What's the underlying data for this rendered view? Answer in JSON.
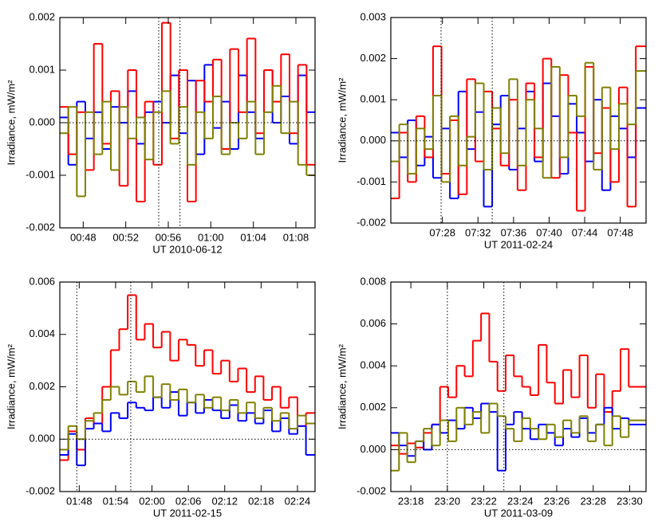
{
  "chart_data": [
    {
      "type": "line",
      "step": true,
      "x_label": "UT 2010-06-12",
      "y_label": "Irradiance, mW/m²",
      "xlim": [
        45.8,
        69.8
      ],
      "ylim": [
        -0.002,
        0.002
      ],
      "xticks": [
        {
          "value": 48,
          "label": "00:48"
        },
        {
          "value": 52,
          "label": "00:52"
        },
        {
          "value": 56,
          "label": "00:56"
        },
        {
          "value": 60,
          "label": "01:00"
        },
        {
          "value": 64,
          "label": "01:04"
        },
        {
          "value": 68,
          "label": "01:08"
        }
      ],
      "yticks": [
        -0.002,
        -0.001,
        {
          "value": 0,
          "label": "0.000"
        },
        0.001,
        0.002
      ],
      "vlines": [
        55.1,
        57.1
      ],
      "hlines": [
        0
      ],
      "x": [
        45.8,
        46.6,
        47.4,
        48.2,
        49.0,
        49.8,
        50.6,
        51.4,
        52.2,
        53.0,
        53.8,
        54.6,
        55.4,
        56.2,
        57.0,
        57.8,
        58.6,
        59.4,
        60.2,
        61.0,
        61.8,
        62.6,
        63.4,
        64.2,
        65.0,
        65.8,
        66.6,
        67.4,
        68.2,
        69.0
      ],
      "series": [
        {
          "color": "#0000ff",
          "values": [
            0.0001,
            -0.0008,
            0.0004,
            -0.0003,
            0.0002,
            -0.0005,
            0.0003,
            0.0,
            0.0006,
            -0.0004,
            0.0002,
            0.0004,
            0.0,
            0.0009,
            -0.0002,
            0.0008,
            -0.0006,
            0.0011,
            -0.0001,
            0.0004,
            -0.0005,
            0.0009,
            0.0002,
            -0.0003,
            0.001,
            0.0,
            0.0005,
            -0.0004,
            0.0009,
            0.0002
          ]
        },
        {
          "color": "#ff0000",
          "values": [
            0.0003,
            -0.0006,
            0.0002,
            -0.0009,
            0.0015,
            -0.0004,
            0.0006,
            -0.0012,
            0.001,
            -0.0015,
            0.0004,
            -0.0008,
            0.0019,
            -0.0003,
            0.001,
            -0.0015,
            0.0008,
            0.0004,
            0.0012,
            -0.0005,
            0.0014,
            0.0002,
            0.0016,
            -0.0002,
            0.001,
            0.0004,
            0.0013,
            -0.0002,
            0.0011,
            -0.0008
          ]
        },
        {
          "color": "#808000",
          "values": [
            -0.0002,
            0.0003,
            -0.0014,
            0.0002,
            -0.0006,
            0.0004,
            -0.0009,
            0.0003,
            -0.0003,
            0.0001,
            -0.0007,
            0.0002,
            0.0006,
            -0.0004,
            0.0003,
            -0.0008,
            0.0002,
            -0.0003,
            0.0005,
            -0.0006,
            0.0,
            -0.0003,
            0.0004,
            -0.0006,
            0.0002,
            0.0007,
            -0.0002,
            0.0004,
            -0.0008,
            -0.001
          ]
        }
      ]
    },
    {
      "type": "line",
      "step": true,
      "x_label": "UT 2011-02-24",
      "y_label": "Irradiance, mW/m²",
      "xlim": [
        442.2,
        470.9
      ],
      "ylim": [
        -0.002,
        0.003
      ],
      "xticks": [
        {
          "value": 448,
          "label": "07:28"
        },
        {
          "value": 452,
          "label": "07:32"
        },
        {
          "value": 456,
          "label": "07:36"
        },
        {
          "value": 460,
          "label": "07:40"
        },
        {
          "value": 464,
          "label": "07:44"
        },
        {
          "value": 468,
          "label": "07:48"
        }
      ],
      "yticks": [
        -0.002,
        -0.001,
        {
          "value": 0,
          "label": "0.000"
        },
        0.001,
        0.002,
        0.003
      ],
      "vlines": [
        447.85,
        453.6
      ],
      "hlines": [
        0
      ],
      "x": [
        442.2,
        443.15,
        444.1,
        445.05,
        446.0,
        446.95,
        447.9,
        448.85,
        449.8,
        450.75,
        451.7,
        452.65,
        453.6,
        454.55,
        455.5,
        456.45,
        457.4,
        458.35,
        459.3,
        460.25,
        461.2,
        462.15,
        463.1,
        464.05,
        465.0,
        465.95,
        466.9,
        467.85,
        468.8,
        469.75
      ],
      "series": [
        {
          "color": "#0000ff",
          "values": [
            0.0002,
            -0.0004,
            0.0005,
            -0.0006,
            0.0001,
            -0.0009,
            0.0003,
            -0.0014,
            0.0012,
            -0.0002,
            0.0007,
            -0.0016,
            0.0004,
            0.0011,
            -0.0007,
            0.0003,
            0.0012,
            -0.0005,
            0.0014,
            0.0006,
            -0.0008,
            0.0009,
            0.0002,
            -0.0005,
            0.001,
            -0.0012,
            0.0006,
            0.0003,
            -0.0004,
            0.0008
          ]
        },
        {
          "color": "#ff0000",
          "values": [
            -0.0014,
            0.0002,
            -0.001,
            0.0006,
            -0.0004,
            0.0023,
            -0.0008,
            0.0005,
            -0.0013,
            0.0015,
            -0.0005,
            0.0012,
            0.0003,
            -0.0006,
            0.001,
            -0.0012,
            0.0014,
            -0.0004,
            0.002,
            -0.0009,
            0.0016,
            0.0002,
            -0.0017,
            0.0018,
            -0.0003,
            0.0008,
            -0.001,
            0.0013,
            -0.0016,
            0.0023
          ]
        },
        {
          "color": "#808000",
          "values": [
            -0.0005,
            0.0004,
            -0.0008,
            0.0003,
            -0.0002,
            0.0011,
            -0.001,
            0.0006,
            -0.0006,
            0.0001,
            0.0014,
            -0.0007,
            0.0008,
            -0.0003,
            0.0015,
            -0.0006,
            0.001,
            0.0003,
            -0.0009,
            0.0018,
            -0.0004,
            0.0011,
            0.0006,
            0.0019,
            -0.0007,
            0.0013,
            -0.0002,
            0.0009,
            0.0004,
            0.0017
          ]
        }
      ]
    },
    {
      "type": "line",
      "step": true,
      "x_label": "UT 2011-02-15",
      "y_label": "Irradiance, mW/m²",
      "xlim": [
        104.8,
        146.9
      ],
      "ylim": [
        -0.002,
        0.006
      ],
      "xticks": [
        {
          "value": 108,
          "label": "01:48"
        },
        {
          "value": 114,
          "label": "01:54"
        },
        {
          "value": 120,
          "label": "02:00"
        },
        {
          "value": 126,
          "label": "02:06"
        },
        {
          "value": 132,
          "label": "02:12"
        },
        {
          "value": 138,
          "label": "02:18"
        },
        {
          "value": 144,
          "label": "02:24"
        }
      ],
      "yticks": [
        -0.002,
        {
          "value": 0,
          "label": "0.000"
        },
        0.002,
        0.004,
        0.006
      ],
      "vlines": [
        107.6,
        116.5
      ],
      "hlines": [
        0
      ],
      "x": [
        104.8,
        106.2,
        107.6,
        109.0,
        110.4,
        111.8,
        113.2,
        114.6,
        116.0,
        117.4,
        118.8,
        120.2,
        121.6,
        123.0,
        124.4,
        125.8,
        127.2,
        128.6,
        130.0,
        131.4,
        132.8,
        134.2,
        135.6,
        137.0,
        138.4,
        139.8,
        141.2,
        142.6,
        144.0,
        145.4
      ],
      "series": [
        {
          "color": "#ff0000",
          "values": [
            -0.0008,
            0.0003,
            -0.0004,
            0.0008,
            0.0006,
            0.002,
            0.0034,
            0.0042,
            0.0055,
            0.0038,
            0.0044,
            0.0035,
            0.0041,
            0.003,
            0.0038,
            0.0036,
            0.0028,
            0.0034,
            0.0025,
            0.003,
            0.0022,
            0.0027,
            0.0018,
            0.0024,
            0.0015,
            0.002,
            0.0012,
            0.0016,
            0.0005,
            0.001
          ]
        },
        {
          "color": "#0000ff",
          "values": [
            -0.0006,
            0.0002,
            -0.001,
            0.0004,
            0.0006,
            0.0003,
            0.001,
            0.0008,
            0.0014,
            0.0012,
            0.0011,
            0.0016,
            0.0012,
            0.0018,
            0.0009,
            0.0014,
            0.001,
            0.0015,
            0.0011,
            0.0008,
            0.0013,
            0.0007,
            0.001,
            0.0006,
            0.0011,
            0.0003,
            0.0008,
            0.0002,
            0.0005,
            -0.0006
          ]
        },
        {
          "color": "#808000",
          "values": [
            -0.0004,
            0.0005,
            0.0,
            0.0007,
            0.001,
            0.0015,
            0.002,
            0.0017,
            0.0022,
            0.0018,
            0.0024,
            0.0016,
            0.0021,
            0.0015,
            0.0019,
            0.0014,
            0.0017,
            0.0012,
            0.0016,
            0.0011,
            0.0015,
            0.001,
            0.0014,
            0.0008,
            0.0012,
            0.0007,
            0.001,
            0.0004,
            0.0009,
            0.0006
          ]
        }
      ]
    },
    {
      "type": "line",
      "step": true,
      "x_label": "UT 2011-03-09",
      "y_label": "Irradiance, mW/m²",
      "xlim": [
        1396.9,
        1410.9
      ],
      "ylim": [
        -0.002,
        0.008
      ],
      "xticks": [
        {
          "value": 1398,
          "label": "23:18"
        },
        {
          "value": 1400,
          "label": "23:20"
        },
        {
          "value": 1402,
          "label": "23:22"
        },
        {
          "value": 1404,
          "label": "23:24"
        },
        {
          "value": 1406,
          "label": "23:26"
        },
        {
          "value": 1408,
          "label": "23:28"
        },
        {
          "value": 1410,
          "label": "23:30"
        }
      ],
      "yticks": [
        -0.002,
        {
          "value": 0,
          "label": "0.000"
        },
        0.002,
        0.004,
        0.006,
        0.008
      ],
      "vlines": [
        1400.0,
        1403.1
      ],
      "hlines": [
        0
      ],
      "x": [
        1396.9,
        1397.35,
        1397.8,
        1398.25,
        1398.7,
        1399.15,
        1399.6,
        1400.05,
        1400.5,
        1400.95,
        1401.4,
        1401.85,
        1402.3,
        1402.75,
        1403.2,
        1403.65,
        1404.1,
        1404.55,
        1405.0,
        1405.45,
        1405.9,
        1406.35,
        1406.8,
        1407.25,
        1407.7,
        1408.15,
        1408.6,
        1409.05,
        1409.5,
        1409.95
      ],
      "series": [
        {
          "color": "#ff0000",
          "values": [
            0.0002,
            -0.0002,
            0.0003,
            0.0001,
            0.0008,
            0.0012,
            0.003,
            0.0025,
            0.004,
            0.0035,
            0.0052,
            0.0065,
            0.0042,
            0.0028,
            0.0045,
            0.0035,
            0.003,
            0.0026,
            0.005,
            0.0032,
            0.0022,
            0.0038,
            0.0025,
            0.0045,
            0.002,
            0.0036,
            0.0018,
            0.0028,
            0.0048,
            0.003
          ]
        },
        {
          "color": "#0000ff",
          "values": [
            0.0008,
            0.0002,
            -0.0003,
            0.0004,
            0.0,
            0.0012,
            0.0008,
            0.0014,
            0.001,
            0.002,
            0.0015,
            0.0022,
            0.0018,
            -0.001,
            0.0012,
            0.0018,
            0.001,
            0.0005,
            0.0012,
            0.0008,
            0.0002,
            0.001,
            0.0006,
            0.0015,
            0.0008,
            0.0012,
            0.002,
            0.001,
            0.0015,
            0.0012
          ]
        },
        {
          "color": "#808000",
          "values": [
            -0.001,
            0.0008,
            -0.0006,
            0.0004,
            0.001,
            0.0002,
            0.0014,
            0.0004,
            0.002,
            0.0012,
            0.0018,
            0.0008,
            0.0022,
            0.0016,
            0.001,
            0.0004,
            0.0015,
            0.001,
            0.0005,
            0.0012,
            0.0006,
            0.0014,
            0.0008,
            0.0016,
            0.0004,
            0.0012,
            0.0002,
            0.0016,
            0.0006,
            0.0014
          ]
        }
      ]
    }
  ]
}
